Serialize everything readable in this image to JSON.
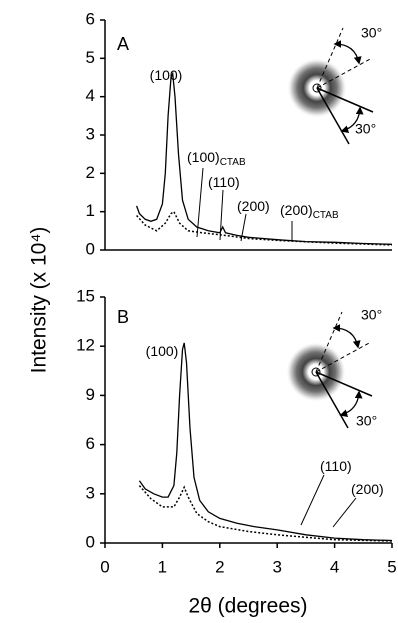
{
  "ylabel": "Intensity (x 10⁴)",
  "xlabel": "2θ (degrees)",
  "chart_data": [
    {
      "type": "line",
      "label": "A",
      "xlim": [
        0,
        5
      ],
      "ylim": [
        0,
        6
      ],
      "yticks": [
        0,
        1,
        2,
        3,
        4,
        5,
        6
      ],
      "series": [
        {
          "color": "#000000",
          "style": "solid",
          "x": [
            0.55,
            0.6,
            0.7,
            0.8,
            0.9,
            1.0,
            1.05,
            1.1,
            1.15,
            1.18,
            1.22,
            1.28,
            1.35,
            1.45,
            1.6,
            1.8,
            2.0,
            2.05,
            2.1,
            2.3,
            2.5,
            3.0,
            3.5,
            4.0,
            4.5,
            5.0
          ],
          "values": [
            1.15,
            0.95,
            0.8,
            0.75,
            0.8,
            1.2,
            2.0,
            3.5,
            4.5,
            4.6,
            4.0,
            2.5,
            1.3,
            0.8,
            0.6,
            0.5,
            0.45,
            0.6,
            0.45,
            0.38,
            0.33,
            0.27,
            0.22,
            0.2,
            0.17,
            0.15
          ]
        },
        {
          "color": "#000000",
          "style": "dotted",
          "x": [
            0.55,
            0.7,
            0.9,
            1.05,
            1.15,
            1.2,
            1.3,
            1.45,
            1.7,
            2.0,
            2.5,
            3.0,
            4.0,
            5.0
          ],
          "values": [
            0.9,
            0.65,
            0.5,
            0.7,
            0.95,
            1.0,
            0.7,
            0.5,
            0.45,
            0.4,
            0.3,
            0.25,
            0.18,
            0.13
          ]
        }
      ],
      "annotations": [
        {
          "text": "(100)"
        },
        {
          "text": "(100)",
          "sub": "CTAB"
        },
        {
          "text": "(110)"
        },
        {
          "text": "(200)"
        },
        {
          "text": "(200)",
          "sub": "CTAB"
        }
      ],
      "angles": [
        "30°",
        "30°"
      ]
    },
    {
      "type": "line",
      "label": "B",
      "xlim": [
        0,
        5
      ],
      "xticks": [
        0,
        1,
        2,
        3,
        4,
        5
      ],
      "ylim": [
        0,
        15
      ],
      "yticks": [
        0,
        3,
        6,
        9,
        12,
        15
      ],
      "series": [
        {
          "color": "#000000",
          "style": "solid",
          "x": [
            0.6,
            0.7,
            0.85,
            1.0,
            1.1,
            1.2,
            1.25,
            1.3,
            1.35,
            1.38,
            1.42,
            1.48,
            1.55,
            1.65,
            1.8,
            2.0,
            2.3,
            2.6,
            3.0,
            3.5,
            4.0,
            4.5,
            5.0
          ],
          "values": [
            3.8,
            3.3,
            3.0,
            2.8,
            2.8,
            3.5,
            5.5,
            9,
            11.8,
            12.2,
            11,
            7,
            4,
            2.6,
            1.9,
            1.5,
            1.2,
            1.0,
            0.8,
            0.5,
            0.3,
            0.2,
            0.15
          ]
        },
        {
          "color": "#000000",
          "style": "dotted",
          "x": [
            0.6,
            0.8,
            1.0,
            1.2,
            1.3,
            1.38,
            1.45,
            1.6,
            1.8,
            2.0,
            2.5,
            3.0,
            3.5,
            4.0,
            5.0
          ],
          "values": [
            3.5,
            2.7,
            2.2,
            2.2,
            2.8,
            3.4,
            2.8,
            1.8,
            1.3,
            1.0,
            0.7,
            0.5,
            0.35,
            0.2,
            0.12
          ]
        }
      ],
      "annotations": [
        {
          "text": "(100)"
        },
        {
          "text": "(110)"
        },
        {
          "text": "(200)"
        }
      ],
      "angles": [
        "30°",
        "30°"
      ]
    }
  ]
}
